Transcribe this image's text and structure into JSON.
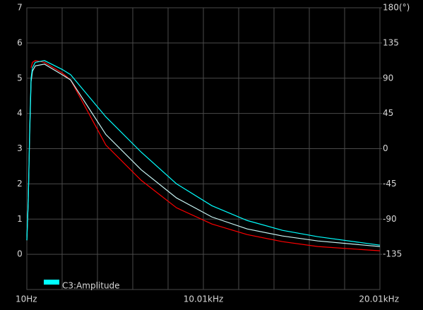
{
  "chart_data": {
    "type": "line",
    "x": [
      10,
      90,
      170,
      250,
      330,
      490,
      1010,
      2010,
      2490,
      4490,
      6490,
      8490,
      10490,
      12490,
      14490,
      16490,
      20010
    ],
    "series": [
      {
        "name": "C3:Amplitude",
        "color": "#00ffff",
        "values": [
          0.4,
          1.5,
          3.5,
          5.0,
          5.3,
          5.45,
          5.5,
          5.25,
          5.1,
          3.9,
          2.9,
          2.0,
          1.38,
          0.96,
          0.68,
          0.5,
          0.26
        ]
      },
      {
        "color": "#c8f4f4",
        "values": [
          0.4,
          1.5,
          3.4,
          4.9,
          5.2,
          5.35,
          5.4,
          5.1,
          4.95,
          3.4,
          2.4,
          1.6,
          1.06,
          0.72,
          0.52,
          0.38,
          0.22
        ]
      },
      {
        "color": "#ff0000",
        "values": [
          null,
          null,
          null,
          5.3,
          5.45,
          5.5,
          5.45,
          5.15,
          4.95,
          3.1,
          2.1,
          1.32,
          0.86,
          0.56,
          0.36,
          0.22,
          0.1
        ]
      }
    ],
    "xlim": [
      10,
      20010
    ],
    "xticks": [
      {
        "value": 10,
        "label": "10Hz"
      },
      {
        "value": 10010,
        "label": "10.01kHz"
      },
      {
        "value": 20010,
        "label": "20.01kHz"
      }
    ],
    "x_minor_ticks": [
      2010,
      4010,
      6010,
      8010,
      12010,
      14010,
      16010,
      18010
    ],
    "ylim": [
      -1,
      7
    ],
    "yticks": [
      0,
      1,
      2,
      3,
      4,
      5,
      6,
      7
    ],
    "y2lim": [
      -180,
      180
    ],
    "y2ticks": [
      -135,
      -90,
      -45,
      0,
      45,
      90,
      135,
      {
        "value": 180,
        "label": "180(°)"
      }
    ],
    "grid": true
  }
}
